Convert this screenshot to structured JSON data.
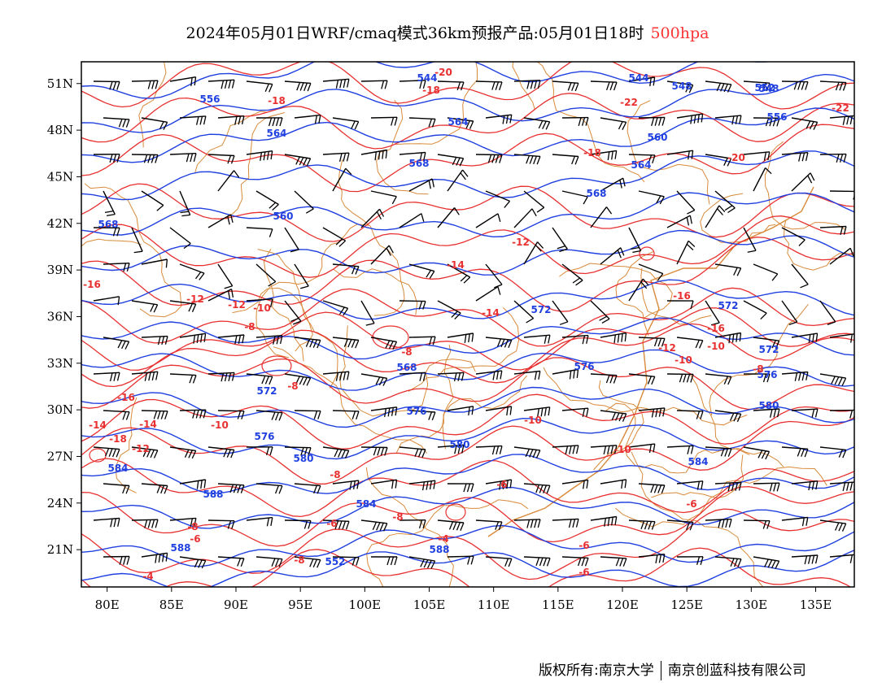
{
  "title": {
    "text": "2024年05月01日WRF/cmaq模式36km预报产品:05月01日18时",
    "level": "500hpa"
  },
  "axes": {
    "lon_ticks": [
      "80E",
      "85E",
      "90E",
      "95E",
      "100E",
      "105E",
      "110E",
      "115E",
      "120E",
      "125E",
      "130E",
      "135E"
    ],
    "lat_ticks": [
      "51N",
      "48N",
      "45N",
      "42N",
      "39N",
      "36N",
      "33N",
      "30N",
      "27N",
      "24N",
      "21N"
    ]
  },
  "colors": {
    "geopotential": "#2040e0",
    "temperature": "#e83030",
    "borders": "#d88a3a",
    "wind": "#000000"
  },
  "height_labels": [
    "548",
    "544",
    "552",
    "556",
    "556",
    "564",
    "560",
    "564",
    "568",
    "568",
    "564",
    "560",
    "568",
    "572",
    "572",
    "568",
    "576",
    "572",
    "576",
    "572",
    "576",
    "576",
    "580",
    "580",
    "584",
    "580",
    "584",
    "584",
    "588",
    "588",
    "588",
    "552",
    "548",
    "544"
  ],
  "temp_labels": [
    "-20",
    "-18",
    "-18",
    "-22",
    "-18",
    "-22",
    "-20",
    "-16",
    "-16",
    "-14",
    "-12",
    "-10",
    "-12",
    "-14",
    "-12",
    "-10",
    "-8",
    "-8",
    "-8",
    "-16",
    "-14",
    "-10",
    "-14",
    "-12",
    "-8",
    "-10",
    "-10",
    "-8",
    "-6",
    "-8",
    "-6",
    "-8",
    "-6",
    "-6",
    "-4",
    "-4",
    "-6",
    "-6",
    "-8",
    "-18",
    "-12",
    "-10",
    "-16"
  ],
  "footer": {
    "left": "版权所有:南京大学",
    "right": "南京创蓝科技有限公司"
  }
}
